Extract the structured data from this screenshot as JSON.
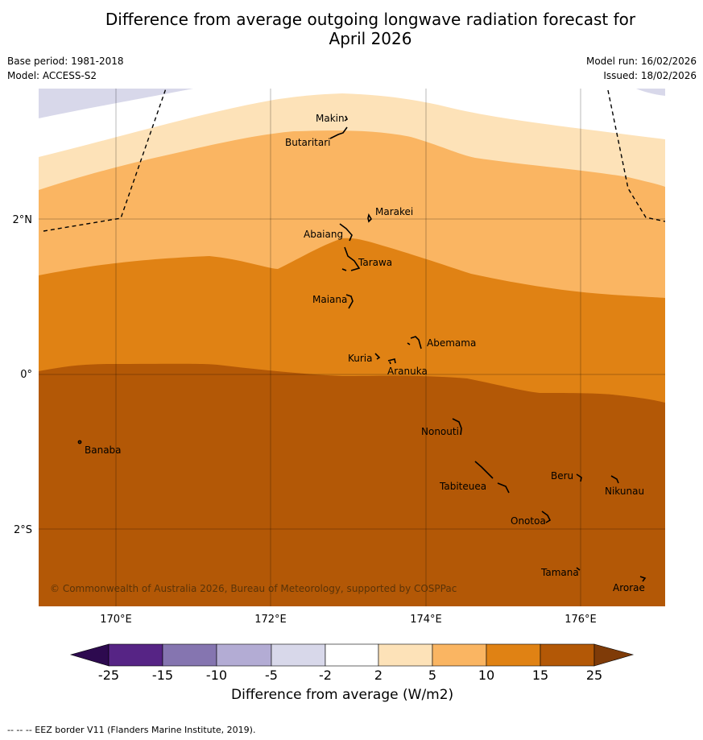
{
  "title_line1": "Difference from average outgoing longwave radiation forecast for",
  "title_line2": "April 2026",
  "base_period": "Base period: 1981-2018",
  "model": "Model: ACCESS-S2",
  "model_run": "Model run: 16/02/2026",
  "issued": "Issued: 18/02/2026",
  "credit": "© Commonwealth of Australia 2026, Bureau of Meteorology, supported by COSPPac",
  "footnote": "-- -- -- EEZ border V11 (Flanders Marine Institute, 2019).",
  "axes": {
    "lat_labels": [
      "2°N",
      "0°",
      "2°S"
    ],
    "lon_labels": [
      "170°E",
      "172°E",
      "174°E",
      "176°E"
    ]
  },
  "places": {
    "makin": "Makin",
    "butaritari": "Butaritari",
    "marakei": "Marakei",
    "abaiang": "Abaiang",
    "tarawa": "Tarawa",
    "maiana": "Maiana",
    "abemama": "Abemama",
    "kuria": "Kuria",
    "aranuka": "Aranuka",
    "nonouti": "Nonouti",
    "banaba": "Banaba",
    "beru": "Beru",
    "nikunau": "Nikunau",
    "tabiteuea": "Tabiteuea",
    "onotoa": "Onotoa",
    "tamana": "Tamana",
    "arorae": "Arorae"
  },
  "colorbar": {
    "label": "Difference from average (W/m2)",
    "ticks": [
      "-25",
      "-15",
      "-10",
      "-5",
      "-2",
      "2",
      "5",
      "10",
      "15",
      "25"
    ],
    "colors": {
      "lt_m25": "#2d0a4f",
      "m25_m15": "#562485",
      "m15_m10": "#8575b0",
      "m10_m5": "#b3acd4",
      "m5_m2": "#d8d8ea",
      "m2_2": "#ffffff",
      "p2_5": "#fde2b8",
      "p5_10": "#fab562",
      "p10_15": "#e08214",
      "p15_25": "#b35806",
      "gt_25": "#7f3b08"
    }
  }
}
